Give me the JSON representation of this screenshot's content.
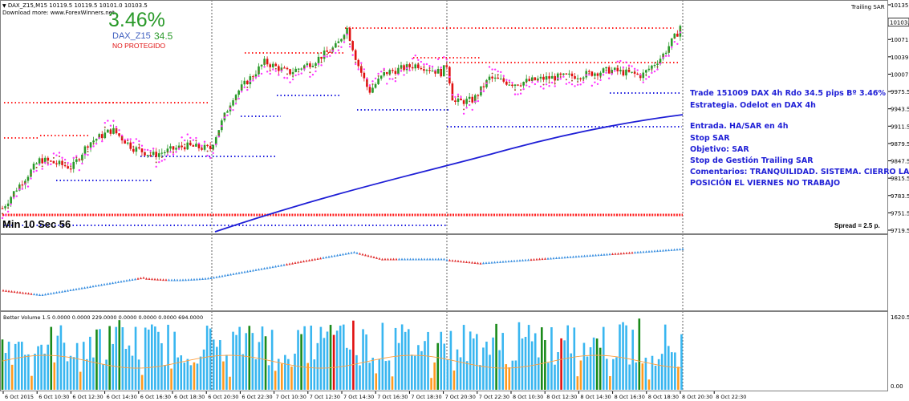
{
  "header": {
    "symbol_line": "DAX_Z15,M15  10119.5 10119.5 10101.0 10103.5",
    "download_line": "Download more: www.ForexWinners.net",
    "indicator_name": "Trailing SAR"
  },
  "overlay": {
    "percent": "3.46%",
    "symbol": "DAX_Z15",
    "pips": "34.5",
    "status": "NO PROTEGIDO",
    "timer": "Min 10 Sec 56",
    "spread": "Spread = 2.5 p."
  },
  "notes": {
    "line1": "Trade 151009 DAX 4h Rdo 34.5 pips Bº 3.46%",
    "line2": "Estrategia. Odelot en DAX 4h",
    "line3": "Entrada. HA/SAR en 4h",
    "line4": "Stop SAR",
    "line5": "Objetivo: SAR",
    "line6": "Stop de Gestión Trailing SAR",
    "line7": "Comentarios: TRANQUILIDAD. SISTEMA. CIERRO LA",
    "line8": "POSICIÓN EL VIERNES NO TRABAJO"
  },
  "price_axis": {
    "labels": [
      "10135.5",
      "10103.5",
      "10071.5",
      "10039.5",
      "10007.5",
      "9975.5",
      "9943.5",
      "9911.5",
      "9879.5",
      "9847.5",
      "9815.5",
      "9783.5",
      "9751.5",
      "9719.5"
    ],
    "current": "10103.5"
  },
  "volume": {
    "label": "Better Volume 1.5  0.0000  0.0000  229.0000  0.0000  0.0000  0.0000  694.0000",
    "axis_labels": [
      "1620.55",
      "0.00"
    ]
  },
  "time_axis": {
    "labels": [
      "6 Oct 2015",
      "6 Oct 10:30",
      "6 Oct 12:30",
      "6 Oct 14:30",
      "6 Oct 16:30",
      "6 Oct 18:30",
      "6 Oct 20:30",
      "6 Oct 22:30",
      "7 Oct 10:30",
      "7 Oct 12:30",
      "7 Oct 14:30",
      "7 Oct 16:30",
      "7 Oct 18:30",
      "7 Oct 20:30",
      "7 Oct 22:30",
      "8 Oct 10:30",
      "8 Oct 12:30",
      "8 Oct 14:30",
      "8 Oct 16:30",
      "8 Oct 18:30",
      "8 Oct 20:30",
      "8 Oct 22:30"
    ]
  },
  "colors": {
    "bull": "#2a9a2a",
    "bear": "#e01010",
    "sar_magenta": "#ff33ff",
    "sar_brown": "#a0522d",
    "level_red": "#ff2020",
    "level_blue": "#2020e0",
    "ma_line": "#1f1fd6",
    "vol_blue": "#39b6f0",
    "vol_orange": "#ff9a20",
    "vol_green": "#1a8a1a",
    "vol_red": "#e01010",
    "vol_avg": "#ffa040"
  }
}
